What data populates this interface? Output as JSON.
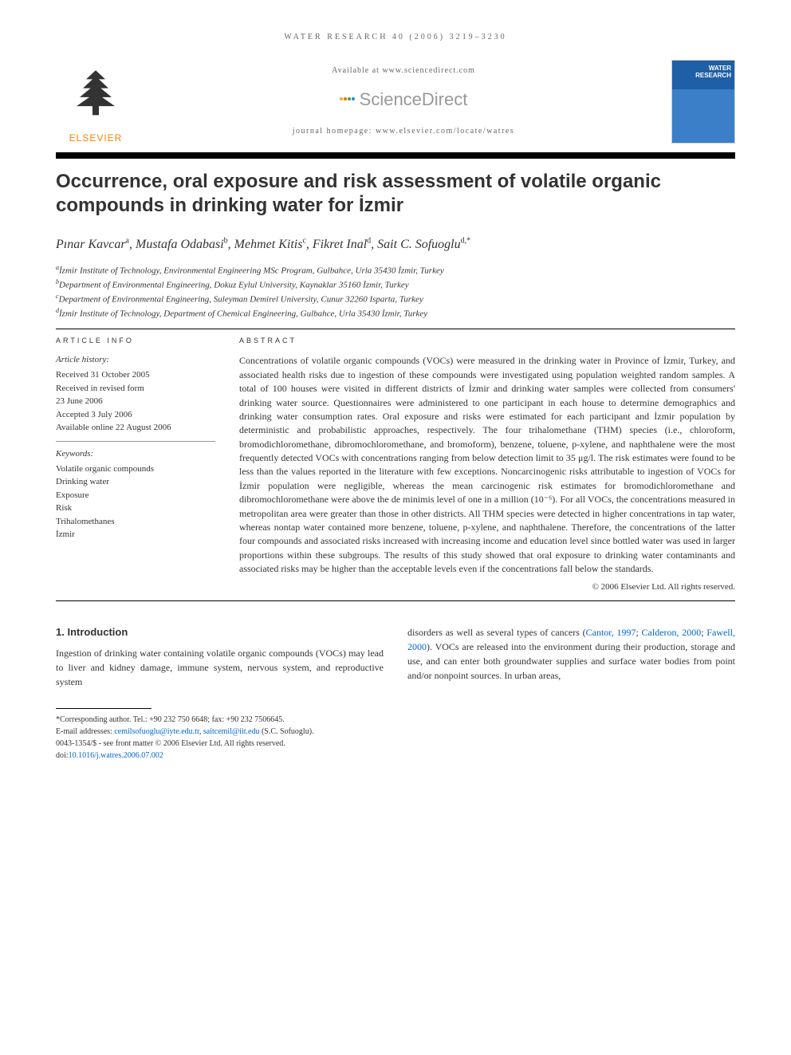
{
  "journal_header": "WATER RESEARCH 40 (2006) 3219–3230",
  "available_at": "Available at www.sciencedirect.com",
  "sciencedirect": "ScienceDirect",
  "homepage_label": "journal homepage: www.elsevier.com/locate/watres",
  "elsevier_label": "ELSEVIER",
  "journal_cover_title": "WATER RESEARCH",
  "article_title": "Occurrence, oral exposure and risk assessment of volatile organic compounds in drinking water for İzmir",
  "authors_html": "Pınar Kavcar<sup>a</sup>, Mustafa Odabasi<sup>b</sup>, Mehmet Kitis<sup>c</sup>, Fikret Inal<sup>d</sup>, Sait C. Sofuoglu<sup>d,*</sup>",
  "affiliations": [
    "aİzmir Institute of Technology, Environmental Engineering MSc Program, Gulbahce, Urla 35430 İzmir, Turkey",
    "bDepartment of Environmental Engineering, Dokuz Eylul University, Kaynaklar 35160 İzmir, Turkey",
    "cDepartment of Environmental Engineering, Suleyman Demirel University, Cunur 32260 Isparta, Turkey",
    "dİzmir Institute of Technology, Department of Chemical Engineering, Gulbahce, Urla 35430 İzmir, Turkey"
  ],
  "article_info_heading": "ARTICLE INFO",
  "history_title": "Article history:",
  "history_lines": [
    "Received 31 October 2005",
    "Received in revised form",
    "23 June 2006",
    "Accepted 3 July 2006",
    "Available online 22 August 2006"
  ],
  "keywords_title": "Keywords:",
  "keywords": [
    "Volatile organic compounds",
    "Drinking water",
    "Exposure",
    "Risk",
    "Trihalomethanes",
    "İzmir"
  ],
  "abstract_heading": "ABSTRACT",
  "abstract_text": "Concentrations of volatile organic compounds (VOCs) were measured in the drinking water in Province of İzmir, Turkey, and associated health risks due to ingestion of these compounds were investigated using population weighted random samples. A total of 100 houses were visited in different districts of İzmir and drinking water samples were collected from consumers' drinking water source. Questionnaires were administered to one participant in each house to determine demographics and drinking water consumption rates. Oral exposure and risks were estimated for each participant and İzmir population by deterministic and probabilistic approaches, respectively. The four trihalomethane (THM) species (i.e., chloroform, bromodichloromethane, dibromochloromethane, and bromoform), benzene, toluene, p-xylene, and naphthalene were the most frequently detected VOCs with concentrations ranging from below detection limit to 35 μg/l. The risk estimates were found to be less than the values reported in the literature with few exceptions. Noncarcinogenic risks attributable to ingestion of VOCs for İzmir population were negligible, whereas the mean carcinogenic risk estimates for bromodichloromethane and dibromochloromethane were above the de minimis level of one in a million (10⁻⁶). For all VOCs, the concentrations measured in metropolitan area were greater than those in other districts. All THM species were detected in higher concentrations in tap water, whereas nontap water contained more benzene, toluene, p-xylene, and naphthalene. Therefore, the concentrations of the latter four compounds and associated risks increased with increasing income and education level since bottled water was used in larger proportions within these subgroups. The results of this study showed that oral exposure to drinking water contaminants and associated risks may be higher than the acceptable levels even if the concentrations fall below the standards.",
  "copyright": "© 2006 Elsevier Ltd. All rights reserved.",
  "section1_heading": "1.        Introduction",
  "body_col1": "Ingestion of drinking water containing volatile organic compounds (VOCs) may lead to liver and kidney damage, immune system, nervous system, and reproductive system",
  "body_col2_pre": "disorders as well as several types of cancers (",
  "body_col2_cite1": "Cantor, 1997",
  "body_col2_mid1": "; ",
  "body_col2_cite2": "Calderon, 2000",
  "body_col2_mid2": "; ",
  "body_col2_cite3": "Fawell, 2000",
  "body_col2_post": "). VOCs are released into the environment during their production, storage and use, and can enter both groundwater supplies and surface water bodies from point and/or nonpoint sources. In urban areas,",
  "corresponding": "*Corresponding author. Tel.: +90 232 750 6648; fax: +90 232 7506645.",
  "email_label": "E-mail addresses: ",
  "email1": "cemilsofuoglu@iyte.edu.tr",
  "email_sep": ", ",
  "email2": "saitcemil@iit.edu",
  "email_author": " (S.C. Sofuoglu).",
  "front_matter": "0043-1354/$ - see front matter © 2006 Elsevier Ltd. All rights reserved.",
  "doi_label": "doi:",
  "doi": "10.1016/j.watres.2006.07.002",
  "colors": {
    "elsevier_orange": "#ff8200",
    "link_blue": "#0066cc",
    "journal_blue": "#1e5fa8",
    "sd_gray": "#999999"
  }
}
